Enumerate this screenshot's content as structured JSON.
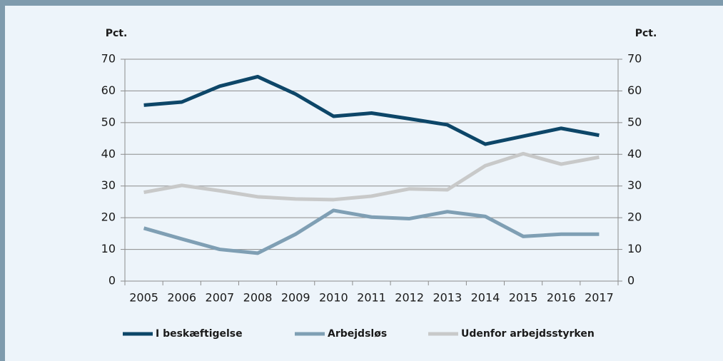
{
  "chart_data": {
    "type": "line",
    "y_label": "Pct.",
    "y2_label": "Pct.",
    "categories": [
      "2005",
      "2006",
      "2007",
      "2008",
      "2009",
      "2010",
      "2011",
      "2012",
      "2013",
      "2014",
      "2015",
      "2016",
      "2017"
    ],
    "series": [
      {
        "name": "I beskæftigelse",
        "color": "#0d4668",
        "values": [
          55.5,
          56.5,
          61.5,
          64.5,
          59,
          52,
          53,
          51.2,
          49.3,
          43.2,
          45.7,
          48.2,
          46
        ]
      },
      {
        "name": "Arbejdsløs",
        "color": "#7f9fb4",
        "values": [
          16.7,
          13.3,
          10,
          8.8,
          14.8,
          22.3,
          20.2,
          19.7,
          21.9,
          20.4,
          14.1,
          14.8,
          14.8
        ]
      },
      {
        "name": "Udenfor arbejdsstyrken",
        "color": "#c8c9c9",
        "values": [
          28,
          30.2,
          28.5,
          26.6,
          25.9,
          25.7,
          26.8,
          29.1,
          28.8,
          36.4,
          40.2,
          36.9,
          39.1
        ]
      }
    ],
    "ylim": [
      0,
      70
    ],
    "yticks": [
      0,
      10,
      20,
      30,
      40,
      50,
      60,
      70
    ],
    "y2lim": [
      0,
      70
    ],
    "y2ticks": [
      0,
      10,
      20,
      30,
      40,
      50,
      60,
      70
    ],
    "grid": true,
    "legend": "bottom"
  }
}
